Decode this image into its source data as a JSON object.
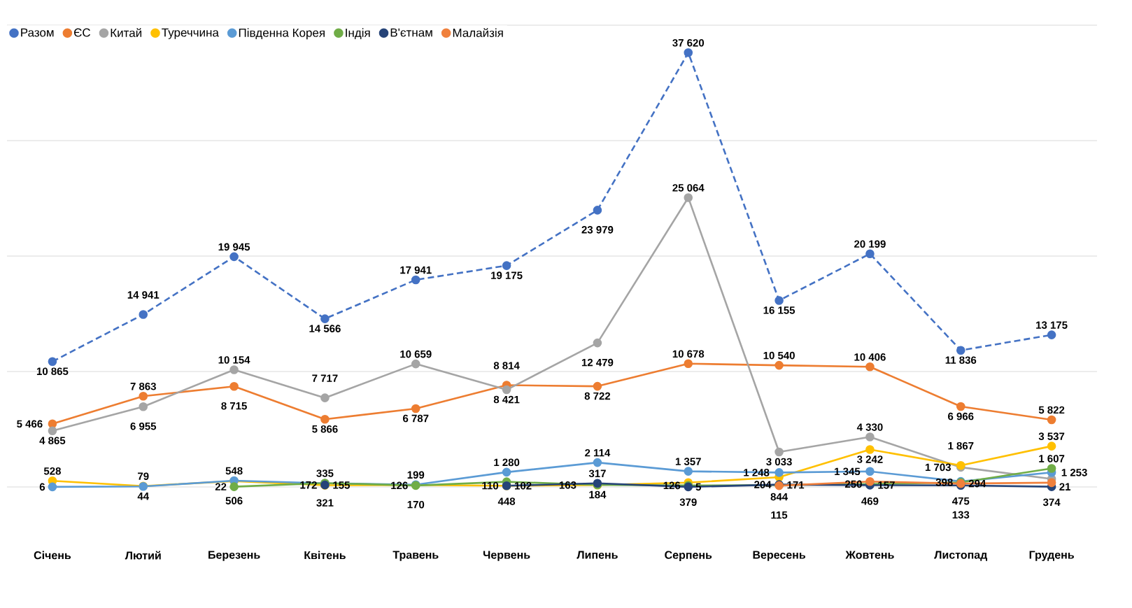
{
  "chart_data": {
    "type": "line",
    "categories": [
      "Січень",
      "Лютий",
      "Березень",
      "Квітень",
      "Травень",
      "Червень",
      "Липень",
      "Серпень",
      "Вересень",
      "Жовтень",
      "Листопад",
      "Грудень"
    ],
    "series": [
      {
        "name": "Разом",
        "color": "#4472c4",
        "line_style": "dashed",
        "values": [
          10865,
          14941,
          19945,
          14566,
          17941,
          19175,
          23979,
          37620,
          16155,
          20199,
          11836,
          13175
        ],
        "value_labels": [
          "10 865",
          "14 941",
          "19 945",
          "14 566",
          "17 941",
          "19 175",
          "23 979",
          "37 620",
          "16 155",
          "20 199",
          "11 836",
          "13 175"
        ]
      },
      {
        "name": "ЄС",
        "color": "#ed7d31",
        "values": [
          5466,
          7863,
          8715,
          5866,
          6787,
          8814,
          8722,
          10678,
          10540,
          10406,
          6966,
          5822
        ],
        "value_labels": [
          "5 466",
          "7 863",
          "8 715",
          "5 866",
          "6 787",
          "8 814",
          "8 722",
          "10 678",
          "10 540",
          "10 406",
          "6 966",
          "5 822"
        ]
      },
      {
        "name": "Китай",
        "color": "#a5a5a5",
        "values": [
          4865,
          6955,
          10154,
          7717,
          10659,
          8421,
          12479,
          25064,
          3033,
          4330,
          1703,
          700
        ],
        "value_labels": [
          "4 865",
          "6 955",
          "10 154",
          "7 717",
          "10 659",
          "8 421",
          "12 479",
          "25 064",
          "3 033",
          "4 330",
          "1 703",
          null
        ]
      },
      {
        "name": "Туреччина",
        "color": "#ffc000",
        "values": [
          528,
          79,
          506,
          155,
          170,
          102,
          163,
          379,
          844,
          3242,
          1867,
          3537
        ],
        "value_labels": [
          "528",
          "79",
          "506",
          "155",
          "170",
          "102",
          "163",
          "379",
          "844",
          "3 242",
          "1 867",
          "3 537"
        ]
      },
      {
        "name": "Південна Корея",
        "color": "#5b9bd5",
        "values": [
          6,
          44,
          548,
          321,
          199,
          1280,
          2114,
          1357,
          1248,
          1345,
          475,
          1253
        ],
        "value_labels": [
          "6",
          "44",
          "548",
          "321",
          "199",
          "1 280",
          "2 114",
          "1 357",
          "1 248",
          "1 345",
          "475",
          "1 253"
        ]
      },
      {
        "name": "Індія",
        "color": "#70ad47",
        "values": [
          null,
          null,
          22,
          335,
          126,
          448,
          184,
          126,
          171,
          250,
          398,
          1607
        ],
        "value_labels": [
          null,
          null,
          "22",
          "335",
          "126",
          "448",
          "184",
          "126",
          "171",
          "250",
          "398",
          "1 607"
        ]
      },
      {
        "name": "В'єтнам",
        "color": "#264478",
        "values": [
          null,
          null,
          null,
          172,
          null,
          110,
          317,
          5,
          204,
          157,
          133,
          21
        ],
        "value_labels": [
          null,
          null,
          null,
          "172",
          null,
          "110",
          "317",
          "5",
          "204",
          "157",
          "133",
          "21"
        ]
      },
      {
        "name": "Малайзія",
        "color": "#f0803c",
        "values": [
          null,
          null,
          null,
          null,
          null,
          null,
          null,
          null,
          115,
          469,
          294,
          374
        ],
        "value_labels": [
          null,
          null,
          null,
          null,
          null,
          null,
          null,
          null,
          "115",
          "469",
          "294",
          "374"
        ]
      }
    ],
    "ylim": [
      0,
      40000
    ],
    "yticks": [
      {
        "value": 0,
        "label": null
      },
      {
        "value": 10000,
        "label": null
      },
      {
        "value": 20000,
        "label": null
      },
      {
        "value": 30000,
        "label": null
      },
      {
        "value": 40000,
        "label": null
      }
    ],
    "grid": "y",
    "tick_labels": "x",
    "legend": "top left",
    "marker": "circle"
  }
}
